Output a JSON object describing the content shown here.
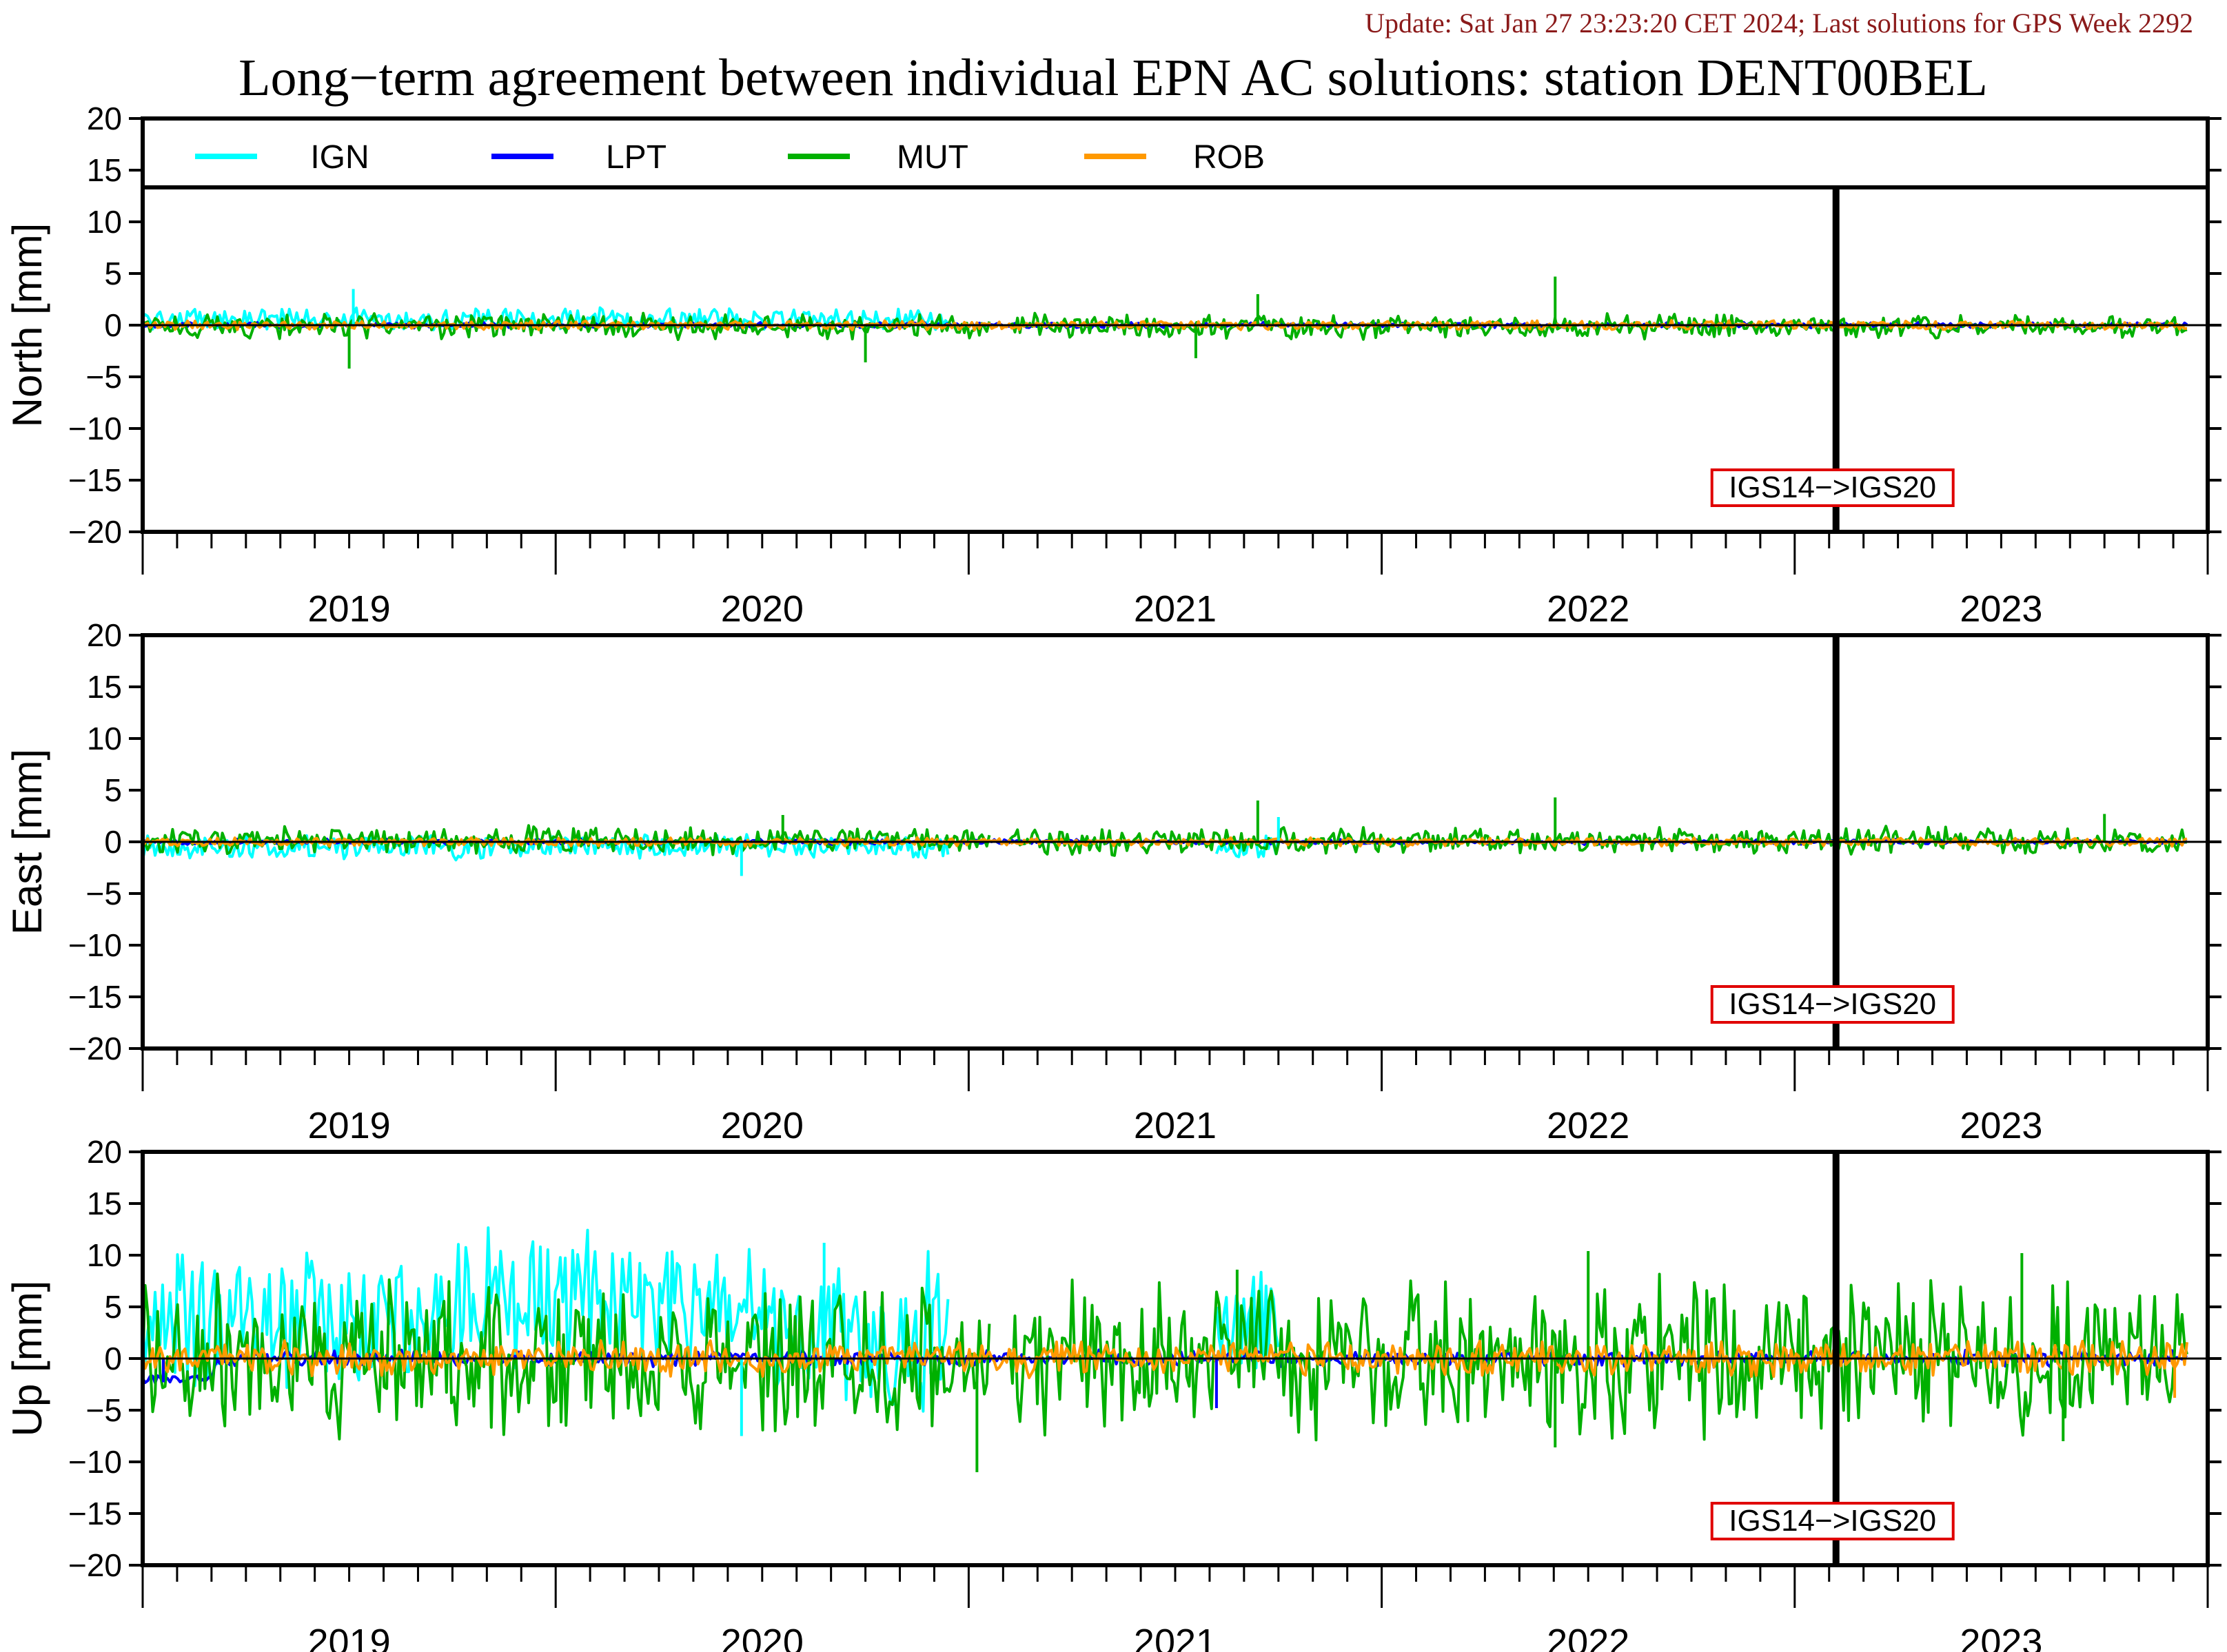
{
  "update_text": "Update: Sat Jan 27 23:23:20 CET 2024; Last solutions for GPS Week 2292",
  "title": "Long−term agreement between individual EPN AC solutions: station DENT00BEL",
  "colors": {
    "update": "#8b1a1a",
    "IGN": "#00ffff",
    "LPT": "#0000ff",
    "MUT": "#00b000",
    "ROB": "#ff9900",
    "marker_box": "#e00000"
  },
  "chart_data": {
    "type": "line",
    "legend": {
      "placement": "top (inside first panel)",
      "entries": [
        "IGN",
        "LPT",
        "MUT",
        "ROB"
      ]
    },
    "x_axis": {
      "range": [
        2018.5,
        2023.5
      ],
      "year_labels": [
        "2019",
        "2020",
        "2021",
        "2022",
        "2023"
      ],
      "year_label_positions": [
        2019.0,
        2020.0,
        2021.0,
        2022.0,
        2023.0
      ]
    },
    "reference_change": {
      "label": "IGS14−>IGS20",
      "x": 2022.6
    },
    "panels": [
      {
        "ylabel": "North [mm]",
        "ylim": [
          -20,
          20
        ],
        "yticks": [
          20,
          15,
          10,
          5,
          0,
          -5,
          -10,
          -15,
          -20
        ],
        "zero_line": true,
        "series": [
          {
            "name": "IGN",
            "segments": [
              [
                2018.5,
                2020.45
              ]
            ],
            "amp": 0.9,
            "bias": 0.6,
            "noise": 0.25
          },
          {
            "name": "LPT",
            "segments": [
              [
                2018.5,
                2023.45
              ]
            ],
            "amp": 0.15,
            "bias": 0.0,
            "noise": 0.15
          },
          {
            "name": "MUT",
            "segments": [
              [
                2018.5,
                2020.55
              ],
              [
                2020.6,
                2023.45
              ]
            ],
            "amp": 0.9,
            "bias": -0.1,
            "noise": 0.45
          },
          {
            "name": "ROB",
            "segments": [
              [
                2018.5,
                2023.45
              ]
            ],
            "amp": 0.3,
            "bias": 0.0,
            "noise": 0.2
          }
        ],
        "spikes": [
          {
            "series": "MUT",
            "x": 2019.0,
            "y": -4.2
          },
          {
            "series": "IGN",
            "x": 2019.01,
            "y": 3.5
          },
          {
            "series": "MUT",
            "x": 2020.25,
            "y": -3.6
          },
          {
            "series": "MUT",
            "x": 2021.2,
            "y": 3.0
          },
          {
            "series": "MUT",
            "x": 2021.05,
            "y": -3.2
          },
          {
            "series": "MUT",
            "x": 2021.92,
            "y": 4.7
          }
        ]
      },
      {
        "ylabel": "East [mm]",
        "ylim": [
          -20,
          20
        ],
        "yticks": [
          20,
          15,
          10,
          5,
          0,
          -5,
          -10,
          -15,
          -20
        ],
        "zero_line": true,
        "series": [
          {
            "name": "IGN",
            "segments": [
              [
                2018.5,
                2020.45
              ],
              [
                2021.1,
                2021.25
              ]
            ],
            "amp": 1.0,
            "bias": -0.5,
            "noise": 0.3
          },
          {
            "name": "LPT",
            "segments": [
              [
                2018.5,
                2023.45
              ]
            ],
            "amp": 0.15,
            "bias": 0.0,
            "noise": 0.15
          },
          {
            "name": "MUT",
            "segments": [
              [
                2018.5,
                2020.55
              ],
              [
                2020.6,
                2023.45
              ]
            ],
            "amp": 1.0,
            "bias": 0.1,
            "noise": 0.5
          },
          {
            "name": "ROB",
            "segments": [
              [
                2018.5,
                2023.45
              ]
            ],
            "amp": 0.25,
            "bias": 0.0,
            "noise": 0.2
          }
        ],
        "spikes": [
          {
            "series": "IGN",
            "x": 2019.95,
            "y": -3.3
          },
          {
            "series": "MUT",
            "x": 2021.2,
            "y": 4.0
          },
          {
            "series": "IGN",
            "x": 2021.25,
            "y": 2.4
          },
          {
            "series": "MUT",
            "x": 2021.92,
            "y": 4.3
          },
          {
            "series": "MUT",
            "x": 2020.05,
            "y": 2.6
          },
          {
            "series": "MUT",
            "x": 2023.25,
            "y": 2.7
          }
        ]
      },
      {
        "ylabel": "Up [mm]",
        "ylim": [
          -20,
          20
        ],
        "yticks": [
          20,
          15,
          10,
          5,
          0,
          -5,
          -10,
          -15,
          -20
        ],
        "zero_line": true,
        "series": [
          {
            "name": "IGN",
            "segments": [
              [
                2018.5,
                2020.45
              ],
              [
                2021.1,
                2021.25
              ]
            ],
            "amp": 5.5,
            "bias": 3.5,
            "noise": 1.6
          },
          {
            "name": "LPT",
            "segments": [
              [
                2018.5,
                2023.45
              ]
            ],
            "amp": 0.5,
            "bias": 0.0,
            "noise": 0.4
          },
          {
            "name": "MUT",
            "segments": [
              [
                2018.5,
                2020.55
              ],
              [
                2020.6,
                2023.45
              ]
            ],
            "amp": 5.5,
            "bias": 0.2,
            "noise": 3.0
          },
          {
            "name": "ROB",
            "segments": [
              [
                2018.5,
                2023.45
              ]
            ],
            "amp": 1.2,
            "bias": 0.0,
            "noise": 0.7
          }
        ],
        "spikes": [
          {
            "series": "MUT",
            "x": 2020.52,
            "y": -11.0
          },
          {
            "series": "IGN",
            "x": 2020.15,
            "y": 11.2
          },
          {
            "series": "IGN",
            "x": 2019.95,
            "y": -7.5
          },
          {
            "series": "MUT",
            "x": 2021.15,
            "y": 8.6
          },
          {
            "series": "MUT",
            "x": 2021.92,
            "y": -8.6
          },
          {
            "series": "MUT",
            "x": 2022.0,
            "y": 10.4
          },
          {
            "series": "MUT",
            "x": 2023.05,
            "y": 10.2
          },
          {
            "series": "MUT",
            "x": 2023.15,
            "y": -8.0
          },
          {
            "series": "LPT",
            "x": 2018.55,
            "y": -2.3
          },
          {
            "series": "ROB",
            "x": 2023.42,
            "y": -3.8
          },
          {
            "series": "LPT",
            "x": 2021.1,
            "y": -4.8
          }
        ],
        "lpt_start_offset": {
          "range": [
            2018.5,
            2018.67
          ],
          "y": -2.0
        }
      }
    ]
  }
}
